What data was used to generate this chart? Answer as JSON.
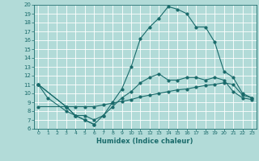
{
  "xlabel": "Humidex (Indice chaleur)",
  "bg_color": "#b2dbd8",
  "grid_color": "#ffffff",
  "line_color": "#1a6b6b",
  "xlim": [
    -0.5,
    23.5
  ],
  "ylim": [
    6,
    20
  ],
  "xticks": [
    0,
    1,
    2,
    3,
    4,
    5,
    6,
    7,
    8,
    9,
    10,
    11,
    12,
    13,
    14,
    15,
    16,
    17,
    18,
    19,
    20,
    21,
    22,
    23
  ],
  "yticks": [
    6,
    7,
    8,
    9,
    10,
    11,
    12,
    13,
    14,
    15,
    16,
    17,
    18,
    19,
    20
  ],
  "s1_x": [
    0,
    1,
    3,
    4,
    5,
    6
  ],
  "s1_y": [
    11,
    9.5,
    8,
    7.5,
    7,
    6.5
  ],
  "s2_x": [
    0,
    3,
    4,
    5,
    6,
    7,
    8,
    9,
    10,
    11,
    12,
    13,
    14,
    15,
    16,
    17,
    18,
    19,
    20,
    21,
    22,
    23
  ],
  "s2_y": [
    8.5,
    8.5,
    8.5,
    8.5,
    8.5,
    8.7,
    8.9,
    9.1,
    9.3,
    9.6,
    9.8,
    10.0,
    10.2,
    10.4,
    10.5,
    10.7,
    10.9,
    11.0,
    11.2,
    11.0,
    9.8,
    9.5
  ],
  "s3_x": [
    0,
    3,
    4,
    5,
    6,
    7,
    8,
    9,
    10,
    11,
    12,
    13,
    14,
    15,
    16,
    17,
    18,
    19,
    20,
    21,
    22,
    23
  ],
  "s3_y": [
    11.0,
    8.5,
    7.5,
    7.5,
    7.0,
    7.5,
    8.5,
    9.5,
    10.2,
    11.2,
    11.8,
    12.2,
    11.5,
    11.5,
    11.8,
    11.8,
    11.5,
    11.8,
    11.5,
    10.2,
    9.5,
    9.3
  ],
  "s4_x": [
    0,
    3,
    4,
    5,
    6,
    7,
    8,
    9,
    10,
    11,
    12,
    13,
    14,
    15,
    16,
    17,
    18,
    19,
    20,
    21,
    22,
    23
  ],
  "s4_y": [
    11.0,
    8.5,
    7.5,
    7.0,
    6.5,
    7.5,
    9.0,
    10.5,
    13.0,
    16.2,
    17.5,
    18.5,
    19.8,
    19.5,
    19.0,
    17.5,
    17.5,
    15.8,
    12.5,
    11.8,
    10.0,
    9.5
  ]
}
